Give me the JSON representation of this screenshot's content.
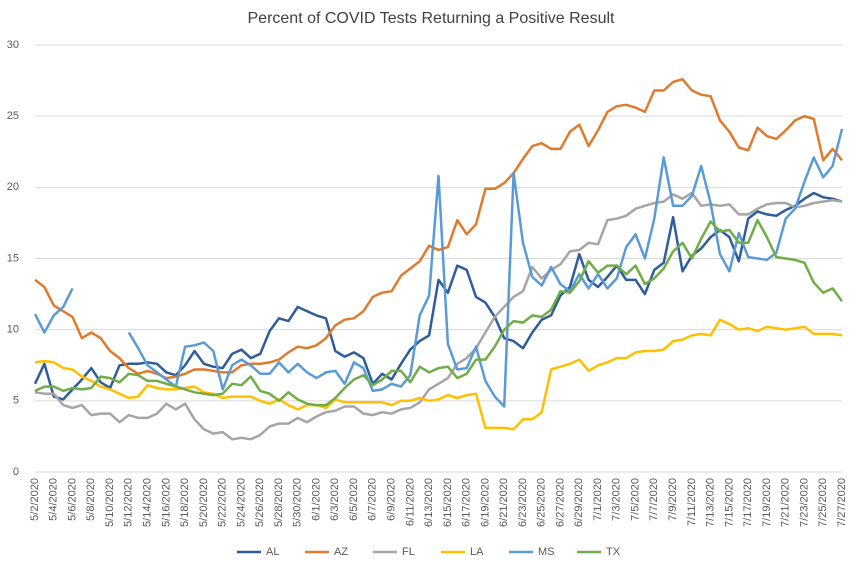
{
  "chart_data": {
    "type": "line",
    "title": "Percent of COVID Tests Returning a Positive Result",
    "categories": [
      "5/2/2020",
      null,
      "5/4/2020",
      null,
      "5/6/2020",
      null,
      "5/8/2020",
      null,
      "5/10/2020",
      null,
      "5/12/2020",
      null,
      "5/14/2020",
      null,
      "5/16/2020",
      null,
      "5/18/2020",
      null,
      "5/20/2020",
      null,
      "5/22/2020",
      null,
      "5/24/2020",
      null,
      "5/26/2020",
      null,
      "5/28/2020",
      null,
      "5/30/2020",
      null,
      "6/1/2020",
      null,
      "6/3/2020",
      null,
      "6/5/2020",
      null,
      "6/7/2020",
      null,
      "6/9/2020",
      null,
      "6/11/2020",
      null,
      "6/13/2020",
      null,
      "6/15/2020",
      null,
      "6/17/2020",
      null,
      "6/19/2020",
      null,
      "6/21/2020",
      null,
      "6/23/2020",
      null,
      "6/25/2020",
      null,
      "6/27/2020",
      null,
      "6/29/2020",
      null,
      "7/1/2020",
      null,
      "7/3/2020",
      null,
      "7/5/2020",
      null,
      "7/7/2020",
      null,
      "7/9/2020",
      null,
      "7/11/2020",
      null,
      "7/13/2020",
      null,
      "7/15/2020",
      null,
      "7/17/2020",
      null,
      "7/19/2020",
      null,
      "7/21/2020",
      null,
      "7/23/2020",
      null,
      "7/25/2020",
      null,
      "7/27/2020"
    ],
    "series": [
      {
        "name": "AL",
        "color": "#2e5d9a",
        "values": [
          6.2,
          7.6,
          5.3,
          5.1,
          5.8,
          6.5,
          7.3,
          6.3,
          5.9,
          7.5,
          7.6,
          7.6,
          7.7,
          7.6,
          7.0,
          6.8,
          7.5,
          8.5,
          7.6,
          7.4,
          7.3,
          8.3,
          8.6,
          8.0,
          8.3,
          9.9,
          10.8,
          10.6,
          11.6,
          11.3,
          11.0,
          10.8,
          8.5,
          8.1,
          8.4,
          8.0,
          6.2,
          6.9,
          6.5,
          7.6,
          8.6,
          9.2,
          9.6,
          13.5,
          12.6,
          14.5,
          14.2,
          12.3,
          11.9,
          10.9,
          9.4,
          9.2,
          8.7,
          9.8,
          10.7,
          11.0,
          12.4,
          13.0,
          15.3,
          13.5,
          13.0,
          13.7,
          14.5,
          13.5,
          13.5,
          12.5,
          14.2,
          14.7,
          17.9,
          14.1,
          15.2,
          15.7,
          16.5,
          17.0,
          16.5,
          14.8,
          17.8,
          18.3,
          18.1,
          18.0,
          18.4,
          18.7,
          19.2,
          19.6,
          19.3,
          19.2,
          19.0
        ]
      },
      {
        "name": "AZ",
        "color": "#e07b2e",
        "values": [
          13.5,
          13.0,
          11.7,
          11.3,
          10.9,
          9.4,
          9.8,
          9.4,
          8.5,
          8.0,
          7.3,
          6.9,
          7.1,
          6.9,
          6.6,
          6.7,
          6.9,
          7.2,
          7.2,
          7.1,
          7.0,
          7.0,
          7.5,
          7.6,
          7.6,
          7.7,
          7.9,
          8.4,
          8.8,
          8.7,
          8.9,
          9.4,
          10.3,
          10.7,
          10.8,
          11.3,
          12.3,
          12.6,
          12.7,
          13.8,
          14.3,
          14.8,
          15.9,
          15.6,
          15.8,
          17.7,
          16.7,
          17.4,
          19.9,
          19.9,
          20.3,
          21.0,
          22.0,
          22.9,
          23.1,
          22.7,
          22.7,
          23.9,
          24.4,
          22.9,
          24.0,
          25.3,
          25.7,
          25.8,
          25.6,
          25.3,
          26.8,
          26.8,
          27.4,
          27.6,
          26.8,
          26.5,
          26.4,
          24.7,
          23.9,
          22.8,
          22.6,
          24.2,
          23.6,
          23.4,
          24.0,
          24.7,
          25.0,
          24.8,
          21.9,
          22.7,
          21.9
        ]
      },
      {
        "name": "FL",
        "color": "#a5a5a5",
        "values": [
          5.6,
          5.5,
          5.5,
          4.7,
          4.5,
          4.7,
          4.0,
          4.1,
          4.1,
          3.5,
          4.0,
          3.8,
          3.8,
          4.1,
          4.8,
          4.4,
          4.8,
          3.7,
          3.0,
          2.7,
          2.8,
          2.3,
          2.4,
          2.3,
          2.6,
          3.2,
          3.4,
          3.4,
          3.8,
          3.5,
          3.9,
          4.2,
          4.3,
          4.6,
          4.6,
          4.1,
          4.0,
          4.2,
          4.1,
          4.4,
          4.5,
          4.9,
          5.8,
          6.2,
          6.6,
          7.6,
          8.0,
          8.7,
          9.8,
          10.9,
          11.6,
          12.3,
          12.7,
          14.4,
          13.6,
          14.2,
          14.6,
          15.5,
          15.6,
          16.1,
          16.0,
          17.7,
          17.8,
          18.0,
          18.5,
          18.7,
          18.9,
          19.0,
          19.5,
          19.2,
          19.6,
          18.7,
          18.8,
          18.7,
          18.8,
          18.1,
          18.1,
          18.5,
          18.8,
          18.9,
          18.9,
          18.6,
          18.7,
          18.9,
          19.0,
          19.1,
          19.0
        ]
      },
      {
        "name": "LA",
        "color": "#ffc000",
        "values": [
          7.7,
          7.8,
          7.7,
          7.3,
          7.2,
          6.7,
          6.4,
          6.0,
          5.8,
          5.5,
          5.2,
          5.3,
          6.1,
          5.9,
          5.8,
          5.8,
          5.9,
          6.0,
          5.6,
          5.5,
          5.2,
          5.3,
          5.3,
          5.3,
          5.0,
          4.8,
          5.1,
          4.7,
          4.4,
          4.7,
          4.7,
          4.5,
          5.1,
          4.9,
          4.9,
          4.9,
          4.9,
          4.9,
          4.7,
          5.0,
          5.0,
          5.2,
          5.0,
          5.1,
          5.4,
          5.2,
          5.4,
          5.5,
          3.1,
          3.1,
          3.1,
          3.0,
          3.7,
          3.7,
          4.2,
          7.2,
          7.4,
          7.6,
          7.9,
          7.1,
          7.5,
          7.7,
          8.0,
          8.0,
          8.4,
          8.5,
          8.5,
          8.6,
          9.2,
          9.3,
          9.6,
          9.7,
          9.6,
          10.7,
          10.4,
          10.0,
          10.1,
          9.9,
          10.2,
          10.1,
          10.0,
          10.1,
          10.2,
          9.7,
          9.7,
          9.7,
          9.6
        ]
      },
      {
        "name": "MS",
        "color": "#5b9bd5",
        "values": [
          11.1,
          9.8,
          11.0,
          11.6,
          12.9,
          null,
          null,
          null,
          null,
          null,
          9.8,
          8.7,
          7.5,
          7.0,
          6.5,
          6.0,
          8.8,
          8.9,
          9.1,
          8.5,
          5.8,
          7.5,
          7.9,
          7.5,
          6.9,
          6.9,
          7.7,
          7.0,
          7.6,
          7.0,
          6.6,
          7.0,
          7.1,
          6.2,
          7.7,
          7.3,
          5.7,
          5.8,
          6.2,
          6.0,
          6.8,
          11.0,
          12.4,
          20.8,
          9.0,
          7.2,
          7.3,
          8.8,
          6.4,
          5.3,
          4.6,
          21.0,
          16.1,
          13.7,
          13.1,
          14.4,
          13.2,
          12.7,
          13.9,
          12.9,
          13.9,
          12.9,
          13.6,
          15.8,
          16.7,
          15.0,
          17.8,
          22.1,
          18.7,
          18.7,
          19.4,
          21.5,
          18.9,
          15.3,
          14.1,
          16.8,
          15.1,
          15.0,
          14.9,
          15.4,
          17.8,
          18.5,
          20.4,
          22.1,
          20.7,
          21.5,
          24.1
        ]
      },
      {
        "name": "TX",
        "color": "#70ad47",
        "values": [
          5.7,
          6.0,
          6.0,
          5.7,
          5.9,
          5.8,
          5.9,
          6.7,
          6.6,
          6.3,
          6.9,
          6.8,
          6.4,
          6.4,
          6.2,
          6.0,
          5.8,
          5.6,
          5.5,
          5.4,
          5.5,
          6.2,
          6.1,
          6.7,
          5.7,
          5.5,
          5.0,
          5.6,
          5.1,
          4.8,
          4.7,
          4.7,
          5.2,
          5.9,
          6.5,
          6.8,
          6.1,
          6.5,
          7.1,
          7.1,
          6.3,
          7.4,
          7.0,
          7.3,
          7.4,
          6.6,
          6.9,
          7.9,
          7.9,
          8.8,
          10.0,
          10.6,
          10.5,
          11.0,
          10.9,
          11.4,
          12.7,
          12.6,
          13.4,
          14.8,
          14.0,
          14.5,
          14.5,
          13.9,
          14.5,
          13.2,
          13.6,
          14.3,
          15.5,
          16.1,
          15.0,
          16.4,
          17.6,
          16.9,
          17.0,
          16.1,
          16.1,
          17.7,
          16.5,
          15.1,
          15.0,
          14.9,
          14.7,
          13.3,
          12.6,
          12.9,
          12.0
        ]
      }
    ],
    "ylim": [
      0,
      30
    ],
    "yticks": [
      0,
      5,
      10,
      15,
      20,
      25,
      30
    ],
    "grid": true,
    "legend": "bottom"
  }
}
